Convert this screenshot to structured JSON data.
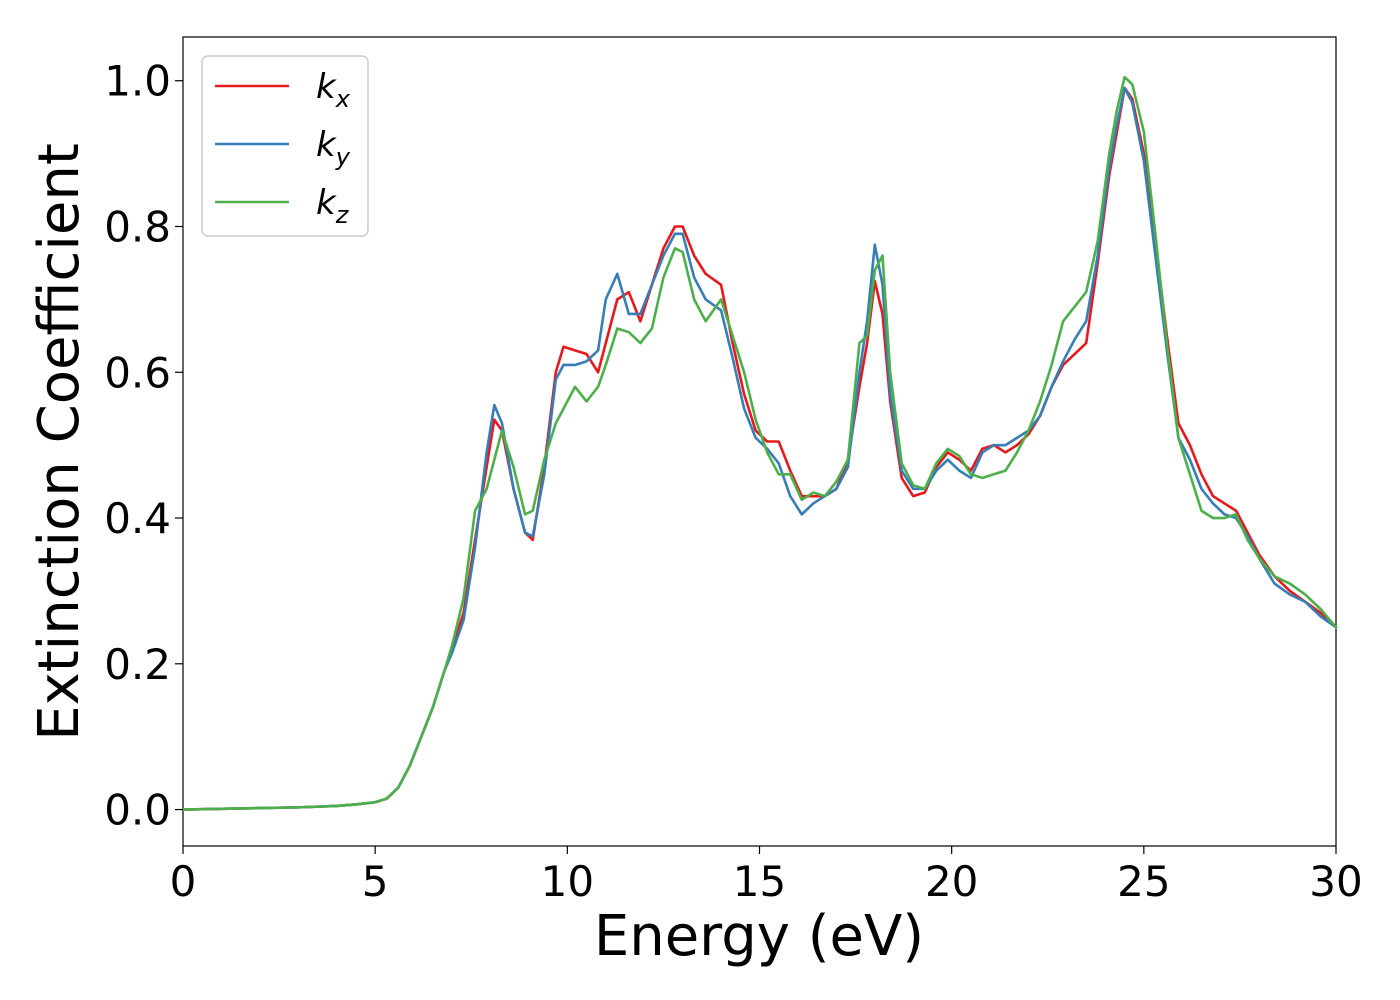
{
  "chart_data": {
    "type": "line",
    "xlabel": "Energy (eV)",
    "ylabel": "Extinction Coefficient",
    "xlim": [
      0,
      30
    ],
    "ylim": [
      -0.05,
      1.06
    ],
    "xticks": [
      0,
      5,
      10,
      15,
      20,
      25,
      30
    ],
    "xtick_labels": [
      "0",
      "5",
      "10",
      "15",
      "20",
      "25",
      "30"
    ],
    "yticks": [
      0.0,
      0.2,
      0.4,
      0.6,
      0.8,
      1.0
    ],
    "ytick_labels": [
      "0.0",
      "0.2",
      "0.4",
      "0.6",
      "0.8",
      "1.0"
    ],
    "grid": false,
    "legend_position": "top-left",
    "series": [
      {
        "name": "k",
        "subscript": "x",
        "color": "#e41a1c",
        "x": [
          0,
          1,
          2,
          3,
          4,
          4.5,
          5,
          5.3,
          5.6,
          5.9,
          6.2,
          6.5,
          6.8,
          7.0,
          7.3,
          7.6,
          7.9,
          8.1,
          8.3,
          8.6,
          8.9,
          9.1,
          9.4,
          9.7,
          9.9,
          10.2,
          10.5,
          10.8,
          11.0,
          11.3,
          11.6,
          11.9,
          12.2,
          12.5,
          12.8,
          13.0,
          13.3,
          13.6,
          14.0,
          14.3,
          14.6,
          14.9,
          15.2,
          15.5,
          15.8,
          16.1,
          16.4,
          16.7,
          17.0,
          17.3,
          17.6,
          17.8,
          18.0,
          18.2,
          18.4,
          18.7,
          19.0,
          19.3,
          19.6,
          19.9,
          20.2,
          20.5,
          20.8,
          21.1,
          21.4,
          21.7,
          22.0,
          22.3,
          22.6,
          22.9,
          23.2,
          23.5,
          23.8,
          24.1,
          24.3,
          24.5,
          24.7,
          25.0,
          25.3,
          25.6,
          25.9,
          26.2,
          26.5,
          26.8,
          27.1,
          27.4,
          27.7,
          28.0,
          28.4,
          28.8,
          29.2,
          29.6,
          30.0
        ],
        "y": [
          0.0,
          0.001,
          0.002,
          0.003,
          0.005,
          0.007,
          0.01,
          0.015,
          0.03,
          0.06,
          0.1,
          0.14,
          0.19,
          0.22,
          0.27,
          0.37,
          0.47,
          0.535,
          0.52,
          0.44,
          0.38,
          0.37,
          0.47,
          0.6,
          0.635,
          0.63,
          0.625,
          0.6,
          0.64,
          0.7,
          0.71,
          0.67,
          0.72,
          0.77,
          0.8,
          0.8,
          0.76,
          0.735,
          0.72,
          0.64,
          0.57,
          0.52,
          0.505,
          0.505,
          0.465,
          0.43,
          0.43,
          0.43,
          0.44,
          0.48,
          0.58,
          0.64,
          0.725,
          0.68,
          0.56,
          0.455,
          0.43,
          0.435,
          0.47,
          0.49,
          0.48,
          0.465,
          0.495,
          0.5,
          0.49,
          0.5,
          0.515,
          0.54,
          0.58,
          0.61,
          0.625,
          0.64,
          0.75,
          0.87,
          0.93,
          0.99,
          0.975,
          0.9,
          0.78,
          0.65,
          0.53,
          0.5,
          0.46,
          0.43,
          0.42,
          0.41,
          0.38,
          0.35,
          0.32,
          0.3,
          0.285,
          0.27,
          0.25
        ]
      },
      {
        "name": "k",
        "subscript": "y",
        "color": "#377eb8",
        "x": [
          0,
          1,
          2,
          3,
          4,
          4.5,
          5,
          5.3,
          5.6,
          5.9,
          6.2,
          6.5,
          6.8,
          7.0,
          7.3,
          7.6,
          7.9,
          8.1,
          8.3,
          8.6,
          8.9,
          9.1,
          9.4,
          9.7,
          9.9,
          10.2,
          10.5,
          10.8,
          11.0,
          11.3,
          11.6,
          11.9,
          12.2,
          12.5,
          12.8,
          13.0,
          13.3,
          13.6,
          14.0,
          14.3,
          14.6,
          14.9,
          15.2,
          15.5,
          15.8,
          16.1,
          16.4,
          16.7,
          17.0,
          17.3,
          17.6,
          17.8,
          18.0,
          18.2,
          18.4,
          18.7,
          19.0,
          19.3,
          19.6,
          19.9,
          20.2,
          20.5,
          20.8,
          21.1,
          21.4,
          21.7,
          22.0,
          22.3,
          22.6,
          22.9,
          23.2,
          23.5,
          23.8,
          24.1,
          24.3,
          24.5,
          24.7,
          25.0,
          25.3,
          25.6,
          25.9,
          26.2,
          26.5,
          26.8,
          27.1,
          27.4,
          27.7,
          28.0,
          28.4,
          28.8,
          29.2,
          29.6,
          30.0
        ],
        "y": [
          0.0,
          0.001,
          0.002,
          0.003,
          0.005,
          0.007,
          0.01,
          0.015,
          0.03,
          0.06,
          0.1,
          0.14,
          0.19,
          0.215,
          0.26,
          0.36,
          0.49,
          0.555,
          0.53,
          0.44,
          0.38,
          0.375,
          0.46,
          0.59,
          0.61,
          0.61,
          0.615,
          0.63,
          0.7,
          0.735,
          0.68,
          0.68,
          0.72,
          0.76,
          0.79,
          0.79,
          0.73,
          0.7,
          0.685,
          0.62,
          0.55,
          0.51,
          0.495,
          0.475,
          0.43,
          0.405,
          0.42,
          0.43,
          0.44,
          0.47,
          0.6,
          0.67,
          0.775,
          0.72,
          0.57,
          0.465,
          0.44,
          0.44,
          0.465,
          0.48,
          0.465,
          0.455,
          0.49,
          0.5,
          0.5,
          0.51,
          0.52,
          0.54,
          0.58,
          0.615,
          0.645,
          0.67,
          0.76,
          0.88,
          0.94,
          0.99,
          0.97,
          0.89,
          0.76,
          0.63,
          0.51,
          0.48,
          0.44,
          0.42,
          0.405,
          0.4,
          0.375,
          0.345,
          0.31,
          0.295,
          0.285,
          0.265,
          0.25
        ]
      },
      {
        "name": "k",
        "subscript": "z",
        "color": "#4daf4a",
        "x": [
          0,
          1,
          2,
          3,
          4,
          4.5,
          5,
          5.3,
          5.6,
          5.9,
          6.2,
          6.5,
          6.8,
          7.0,
          7.3,
          7.6,
          7.9,
          8.1,
          8.3,
          8.6,
          8.9,
          9.1,
          9.4,
          9.7,
          9.9,
          10.2,
          10.5,
          10.8,
          11.0,
          11.3,
          11.6,
          11.9,
          12.2,
          12.5,
          12.8,
          13.0,
          13.3,
          13.6,
          14.0,
          14.3,
          14.6,
          14.9,
          15.2,
          15.5,
          15.8,
          16.1,
          16.4,
          16.7,
          17.0,
          17.3,
          17.6,
          17.8,
          18.0,
          18.2,
          18.4,
          18.7,
          19.0,
          19.3,
          19.6,
          19.9,
          20.2,
          20.5,
          20.8,
          21.1,
          21.4,
          21.7,
          22.0,
          22.3,
          22.6,
          22.9,
          23.2,
          23.5,
          23.8,
          24.1,
          24.3,
          24.5,
          24.7,
          25.0,
          25.3,
          25.6,
          25.9,
          26.2,
          26.5,
          26.8,
          27.1,
          27.4,
          27.7,
          28.0,
          28.4,
          28.8,
          29.2,
          29.6,
          30.0
        ],
        "y": [
          0.0,
          0.001,
          0.002,
          0.003,
          0.005,
          0.007,
          0.01,
          0.015,
          0.03,
          0.06,
          0.1,
          0.14,
          0.19,
          0.225,
          0.29,
          0.41,
          0.44,
          0.48,
          0.52,
          0.47,
          0.405,
          0.41,
          0.48,
          0.53,
          0.55,
          0.58,
          0.56,
          0.58,
          0.61,
          0.66,
          0.655,
          0.64,
          0.66,
          0.73,
          0.77,
          0.765,
          0.7,
          0.67,
          0.7,
          0.65,
          0.6,
          0.535,
          0.49,
          0.46,
          0.46,
          0.425,
          0.435,
          0.43,
          0.45,
          0.48,
          0.64,
          0.65,
          0.74,
          0.76,
          0.6,
          0.475,
          0.445,
          0.44,
          0.475,
          0.495,
          0.485,
          0.46,
          0.455,
          0.46,
          0.465,
          0.49,
          0.52,
          0.56,
          0.61,
          0.67,
          0.69,
          0.71,
          0.78,
          0.9,
          0.96,
          1.005,
          0.995,
          0.93,
          0.79,
          0.64,
          0.51,
          0.46,
          0.41,
          0.4,
          0.4,
          0.405,
          0.37,
          0.345,
          0.32,
          0.31,
          0.295,
          0.275,
          0.25
        ]
      }
    ]
  }
}
